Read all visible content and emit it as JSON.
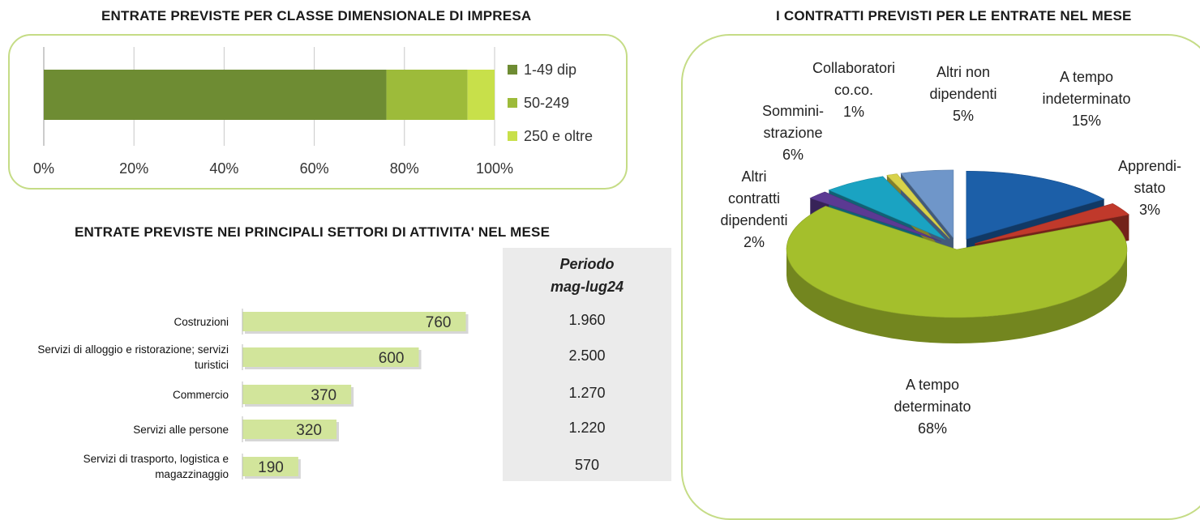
{
  "size_chart": {
    "title": "ENTRATE PREVISTE PER CLASSE DIMENSIONALE DI IMPRESA",
    "chart_data": {
      "type": "bar",
      "orientation": "horizontal-stacked-100",
      "series": [
        {
          "name": "1-49 dip",
          "value": 76,
          "color": "#6e8c33"
        },
        {
          "name": "50-249",
          "value": 18,
          "color": "#9dbb3a"
        },
        {
          "name": "250 e oltre",
          "value": 6,
          "color": "#c8e04a"
        }
      ],
      "x_ticks": [
        "0%",
        "20%",
        "40%",
        "60%",
        "80%",
        "100%"
      ],
      "xlim": [
        0,
        100
      ]
    }
  },
  "sector_chart": {
    "title": "ENTRATE PREVISTE NEI PRINCIPALI SETTORI DI ATTIVITA' NEL MESE",
    "period_header": [
      "Periodo",
      "mag-lug24"
    ],
    "chart_data": {
      "type": "bar",
      "orientation": "horizontal",
      "categories": [
        [
          "Costruzioni"
        ],
        [
          "Servizi di alloggio e ristorazione; servizi",
          "turistici"
        ],
        [
          "Commercio"
        ],
        [
          "Servizi alle persone"
        ],
        [
          "Servizi di trasporto, logistica e",
          "magazzinaggio"
        ]
      ],
      "values": [
        760,
        600,
        370,
        320,
        190
      ],
      "value_labels": [
        "760",
        "600",
        "370",
        "320",
        "190"
      ],
      "xlim": [
        0,
        800
      ],
      "bar_color": "#d2e59b",
      "period_values": [
        "1.960",
        "2.500",
        "1.270",
        "1.220",
        "570"
      ]
    }
  },
  "contracts_chart": {
    "title": "I CONTRATTI PREVISTI PER LE ENTRATE NEL MESE",
    "chart_data": {
      "type": "pie",
      "slices": [
        {
          "name": "A tempo indeterminato",
          "label_lines": [
            "A tempo",
            "indeterminato"
          ],
          "value": 15,
          "pct_label": "15%",
          "color": "#1c5fa8",
          "exploded": true
        },
        {
          "name": "Apprendistato",
          "label_lines": [
            "Apprendi-",
            "stato"
          ],
          "value": 3,
          "pct_label": "3%",
          "color": "#c0392b",
          "exploded": true
        },
        {
          "name": "A tempo determinato",
          "label_lines": [
            "A tempo",
            "determinato"
          ],
          "value": 68,
          "pct_label": "68%",
          "color": "#a4bf2c",
          "exploded": false
        },
        {
          "name": "Altri contratti dipendenti",
          "label_lines": [
            "Altri",
            "contratti",
            "dipendenti"
          ],
          "value": 2,
          "pct_label": "2%",
          "color": "#5b3a93",
          "exploded": true
        },
        {
          "name": "Somministrazione",
          "label_lines": [
            "Sommini-",
            "strazione"
          ],
          "value": 6,
          "pct_label": "6%",
          "color": "#1aa3c2",
          "exploded": true
        },
        {
          "name": "Collaboratori co.co.",
          "label_lines": [
            "Collaboratori",
            "co.co."
          ],
          "value": 1,
          "pct_label": "1%",
          "color": "#d8d24a",
          "exploded": true
        },
        {
          "name": "Altri non dipendenti",
          "label_lines": [
            "Altri non",
            "dipendenti"
          ],
          "value": 5,
          "pct_label": "5%",
          "color": "#6f96c9",
          "exploded": true
        }
      ]
    }
  }
}
